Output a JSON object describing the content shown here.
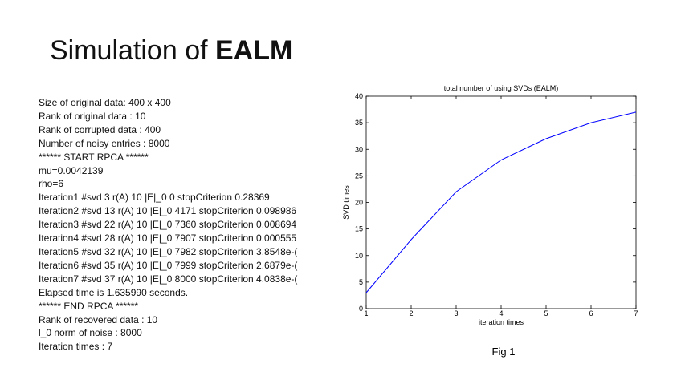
{
  "title": {
    "text": "Simulation of",
    "bold": "EALM"
  },
  "body": {
    "lines": [
      "Size of original data: 400 x 400",
      "Rank of original data : 10",
      "Rank of corrupted data : 400",
      "Number of noisy entries : 8000",
      "****** START RPCA ******",
      "mu=0.0042139",
      "rho=6",
      "Iteration1 #svd 3 r(A) 10 |E|_0 0 stopCriterion 0.28369",
      "Iteration2 #svd 13 r(A) 10 |E|_0 4171 stopCriterion 0.098986",
      "Iteration3 #svd 22 r(A) 10 |E|_0 7360 stopCriterion 0.008694",
      "Iteration4 #svd 28 r(A) 10 |E|_0 7907 stopCriterion 0.000555",
      "Iteration5 #svd 32 r(A) 10 |E|_0 7982 stopCriterion 3.8548e-(",
      "Iteration6 #svd 35 r(A) 10 |E|_0 7999 stopCriterion 2.6879e-(",
      "Iteration7 #svd 37 r(A) 10 |E|_0 8000 stopCriterion 4.0838e-(",
      "Elapsed time is 1.635990 seconds.",
      "****** END RPCA ******",
      "Rank of recovered data : 10",
      "l_0 norm of noise : 8000",
      "Iteration times : 7"
    ]
  },
  "chart_data": {
    "type": "line",
    "title": "total number of using SVDs (EALM)",
    "x_label": "iteration times",
    "y_label": "SVD times",
    "x": [
      1,
      2,
      3,
      4,
      5,
      6,
      7
    ],
    "values": [
      3,
      13,
      22,
      28,
      32,
      35,
      37
    ],
    "color": "#0000ff",
    "xlim": [
      1,
      7
    ],
    "ylim": [
      0,
      40
    ],
    "xticks": [
      1,
      2,
      3,
      4,
      5,
      6,
      7
    ],
    "yticks": [
      0,
      5,
      10,
      15,
      20,
      25,
      30,
      35,
      40
    ],
    "caption": "Fig 1"
  }
}
